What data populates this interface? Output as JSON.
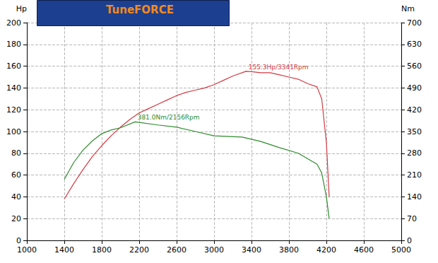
{
  "chart_data": {
    "type": "line",
    "title": "TuneFORCE",
    "y_label": "Hp",
    "y2_label": "Nm",
    "xlim": [
      1000,
      5000
    ],
    "xticks": [
      1000,
      1400,
      1800,
      2200,
      2600,
      3000,
      3400,
      3800,
      4200,
      4600,
      5000
    ],
    "ylim": [
      0,
      200
    ],
    "yticks": [
      0,
      20,
      40,
      60,
      80,
      100,
      120,
      140,
      160,
      180,
      200
    ],
    "y2lim": [
      0,
      700
    ],
    "y2ticks": [
      0,
      70,
      140,
      210,
      280,
      350,
      420,
      490,
      560,
      630,
      700
    ],
    "grid": true,
    "series": [
      {
        "color": "#d23a44",
        "axis": "y",
        "x": [
          1400,
          1500,
          1600,
          1700,
          1800,
          1900,
          2000,
          2100,
          2200,
          2300,
          2400,
          2500,
          2600,
          2700,
          2800,
          2900,
          3000,
          3100,
          3200,
          3341,
          3400,
          3500,
          3600,
          3700,
          3800,
          3900,
          4000,
          4100,
          4150,
          4200,
          4230
        ],
        "values": [
          38,
          52,
          65,
          77,
          87,
          96,
          104,
          111,
          117,
          121,
          125,
          129,
          133,
          136,
          138,
          140,
          143,
          147,
          151,
          155.3,
          155,
          154,
          154,
          152,
          150,
          148,
          144,
          141,
          130,
          90,
          40
        ]
      },
      {
        "color": "#2e8b2e",
        "axis": "y2",
        "x": [
          1400,
          1500,
          1600,
          1700,
          1800,
          1900,
          2000,
          2156,
          2400,
          2600,
          2800,
          3000,
          3300,
          3500,
          3700,
          3900,
          4100,
          4150,
          4200,
          4230
        ],
        "values": [
          196,
          250,
          290,
          320,
          343,
          355,
          362,
          381,
          371,
          364,
          350,
          336,
          332,
          318,
          298,
          280,
          245,
          217,
          140,
          70
        ]
      }
    ],
    "annotations": [
      {
        "text": "155.3Hp/3341Rpm",
        "x": 3341,
        "y": 155.3,
        "axis": "y",
        "color": "#d23a44"
      },
      {
        "text": "381.0Nm/2156Rpm",
        "x": 2156,
        "y": 381.0,
        "axis": "y2",
        "color": "#2e8b2e"
      }
    ]
  }
}
